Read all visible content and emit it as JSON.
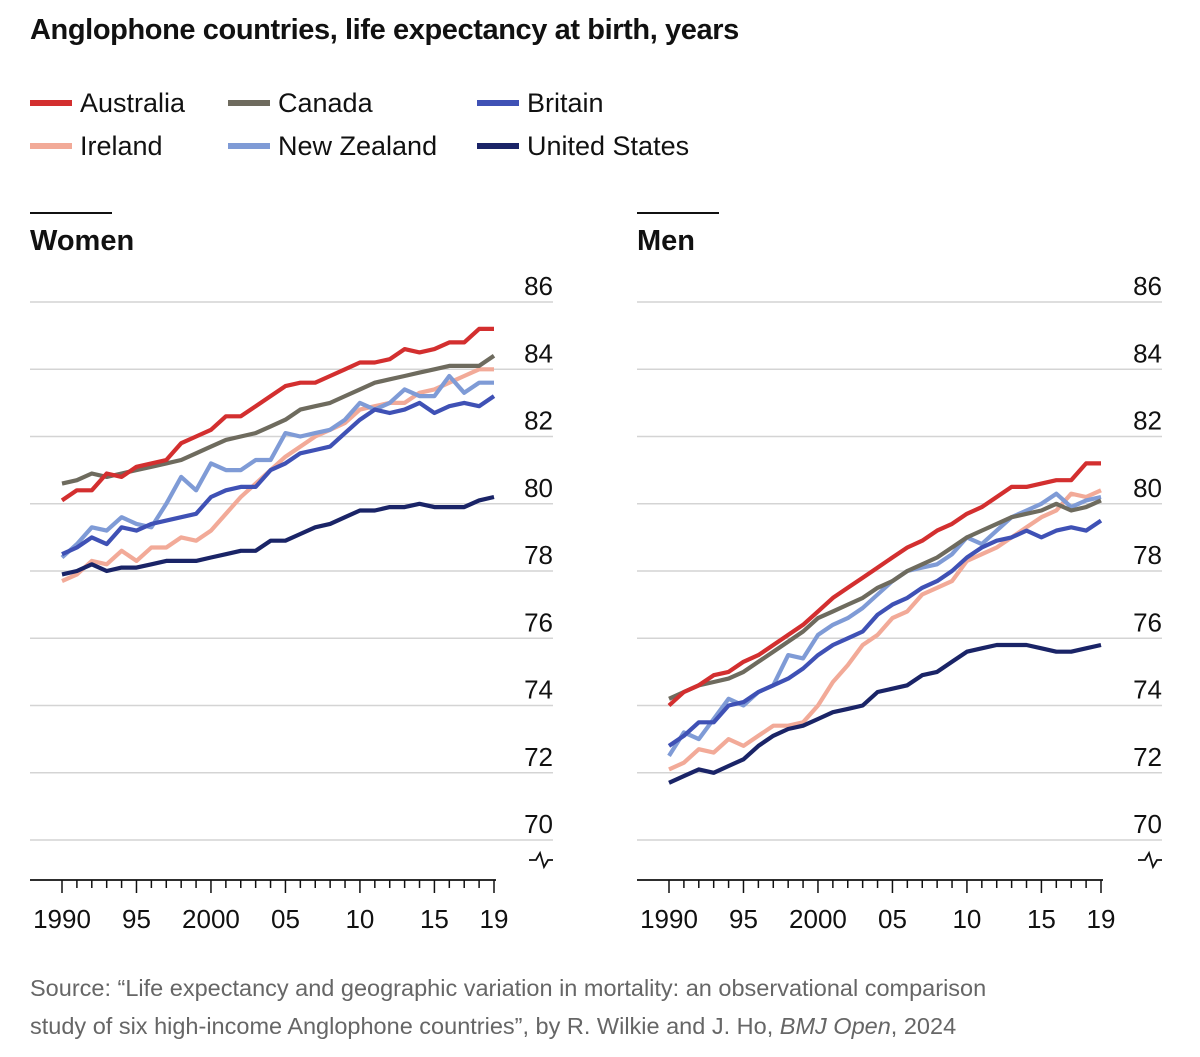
{
  "title": "Anglophone countries, life expectancy at birth, years",
  "legend": [
    {
      "label": "Australia",
      "color": "#d32f2f"
    },
    {
      "label": "Canada",
      "color": "#6e6b5e"
    },
    {
      "label": "Britain",
      "color": "#3f51b5"
    },
    {
      "label": "Ireland",
      "color": "#f2aa98"
    },
    {
      "label": "New Zealand",
      "color": "#7f9bd6"
    },
    {
      "label": "United States",
      "color": "#1a2467"
    }
  ],
  "source": {
    "line1": "Source: “Life expectancy and geographic variation in mortality: an observational comparison",
    "line2_prefix": "study of six high-income Anglophone countries”, by R. Wilkie and J. Ho, ",
    "journal": "BMJ Open",
    "line2_suffix": ", 2024"
  },
  "chart_data": [
    {
      "type": "line",
      "title": "Women",
      "xlabel": "",
      "ylabel": "",
      "x": [
        1990,
        1991,
        1992,
        1993,
        1994,
        1995,
        1996,
        1997,
        1998,
        1999,
        2000,
        2001,
        2002,
        2003,
        2004,
        2005,
        2006,
        2007,
        2008,
        2009,
        2010,
        2011,
        2012,
        2013,
        2014,
        2015,
        2016,
        2017,
        2018,
        2019
      ],
      "xticks": [
        1990,
        1995,
        2000,
        2005,
        2010,
        2015,
        2019
      ],
      "xtick_labels": [
        "1990",
        "95",
        "2000",
        "05",
        "10",
        "15",
        "19"
      ],
      "ylim": [
        70,
        86
      ],
      "yticks": [
        70,
        72,
        74,
        76,
        78,
        80,
        82,
        84,
        86
      ],
      "grid": true,
      "axis_break": true,
      "series": [
        {
          "name": "Ireland",
          "color": "#f2aa98",
          "values": [
            77.7,
            77.9,
            78.3,
            78.2,
            78.6,
            78.3,
            78.7,
            78.7,
            79.0,
            78.9,
            79.2,
            79.7,
            80.2,
            80.6,
            81.0,
            81.4,
            81.7,
            82.0,
            82.2,
            82.4,
            82.8,
            82.9,
            83.0,
            83.0,
            83.3,
            83.4,
            83.6,
            83.8,
            84.0,
            84.0
          ]
        },
        {
          "name": "New Zealand",
          "color": "#7f9bd6",
          "values": [
            78.4,
            78.8,
            79.3,
            79.2,
            79.6,
            79.4,
            79.3,
            80.0,
            80.8,
            80.4,
            81.2,
            81.0,
            81.0,
            81.3,
            81.3,
            82.1,
            82.0,
            82.1,
            82.2,
            82.5,
            83.0,
            82.8,
            83.0,
            83.4,
            83.2,
            83.2,
            83.8,
            83.3,
            83.6,
            83.6
          ]
        },
        {
          "name": "Britain",
          "color": "#3f51b5",
          "values": [
            78.5,
            78.7,
            79.0,
            78.8,
            79.3,
            79.2,
            79.4,
            79.5,
            79.6,
            79.7,
            80.2,
            80.4,
            80.5,
            80.5,
            81.0,
            81.2,
            81.5,
            81.6,
            81.7,
            82.1,
            82.5,
            82.8,
            82.7,
            82.8,
            83.0,
            82.7,
            82.9,
            83.0,
            82.9,
            83.2
          ]
        },
        {
          "name": "United States",
          "color": "#1a2467",
          "values": [
            77.9,
            78.0,
            78.2,
            78.0,
            78.1,
            78.1,
            78.2,
            78.3,
            78.3,
            78.3,
            78.4,
            78.5,
            78.6,
            78.6,
            78.9,
            78.9,
            79.1,
            79.3,
            79.4,
            79.6,
            79.8,
            79.8,
            79.9,
            79.9,
            80.0,
            79.9,
            79.9,
            79.9,
            80.1,
            80.2
          ]
        },
        {
          "name": "Canada",
          "color": "#6e6b5e",
          "values": [
            80.6,
            80.7,
            80.9,
            80.8,
            80.9,
            81.0,
            81.1,
            81.2,
            81.3,
            81.5,
            81.7,
            81.9,
            82.0,
            82.1,
            82.3,
            82.5,
            82.8,
            82.9,
            83.0,
            83.2,
            83.4,
            83.6,
            83.7,
            83.8,
            83.9,
            84.0,
            84.1,
            84.1,
            84.1,
            84.4
          ]
        },
        {
          "name": "Australia",
          "color": "#d32f2f",
          "values": [
            80.1,
            80.4,
            80.4,
            80.9,
            80.8,
            81.1,
            81.2,
            81.3,
            81.8,
            82.0,
            82.2,
            82.6,
            82.6,
            82.9,
            83.2,
            83.5,
            83.6,
            83.6,
            83.8,
            84.0,
            84.2,
            84.2,
            84.3,
            84.6,
            84.5,
            84.6,
            84.8,
            84.8,
            85.2,
            85.2
          ]
        }
      ]
    },
    {
      "type": "line",
      "title": "Men",
      "xlabel": "",
      "ylabel": "",
      "x": [
        1990,
        1991,
        1992,
        1993,
        1994,
        1995,
        1996,
        1997,
        1998,
        1999,
        2000,
        2001,
        2002,
        2003,
        2004,
        2005,
        2006,
        2007,
        2008,
        2009,
        2010,
        2011,
        2012,
        2013,
        2014,
        2015,
        2016,
        2017,
        2018,
        2019
      ],
      "xticks": [
        1990,
        1995,
        2000,
        2005,
        2010,
        2015,
        2019
      ],
      "xtick_labels": [
        "1990",
        "95",
        "2000",
        "05",
        "10",
        "15",
        "19"
      ],
      "ylim": [
        70,
        86
      ],
      "yticks": [
        70,
        72,
        74,
        76,
        78,
        80,
        82,
        84,
        86
      ],
      "grid": true,
      "axis_break": true,
      "series": [
        {
          "name": "Ireland",
          "color": "#f2aa98",
          "values": [
            72.1,
            72.3,
            72.7,
            72.6,
            73.0,
            72.8,
            73.1,
            73.4,
            73.4,
            73.5,
            74.0,
            74.7,
            75.2,
            75.8,
            76.1,
            76.6,
            76.8,
            77.3,
            77.5,
            77.7,
            78.3,
            78.5,
            78.7,
            79.0,
            79.3,
            79.6,
            79.8,
            80.3,
            80.2,
            80.4
          ]
        },
        {
          "name": "New Zealand",
          "color": "#7f9bd6",
          "values": [
            72.5,
            73.2,
            73.0,
            73.6,
            74.2,
            74.0,
            74.4,
            74.6,
            75.5,
            75.4,
            76.1,
            76.4,
            76.6,
            76.9,
            77.3,
            77.7,
            78.0,
            78.1,
            78.2,
            78.5,
            79.0,
            78.8,
            79.2,
            79.6,
            79.8,
            80.0,
            80.3,
            79.9,
            80.1,
            80.2
          ]
        },
        {
          "name": "Britain",
          "color": "#3f51b5",
          "values": [
            72.8,
            73.1,
            73.5,
            73.5,
            74.0,
            74.1,
            74.4,
            74.6,
            74.8,
            75.1,
            75.5,
            75.8,
            76.0,
            76.2,
            76.7,
            77.0,
            77.2,
            77.5,
            77.7,
            78.0,
            78.4,
            78.7,
            78.9,
            79.0,
            79.2,
            79.0,
            79.2,
            79.3,
            79.2,
            79.5
          ]
        },
        {
          "name": "United States",
          "color": "#1a2467",
          "values": [
            71.7,
            71.9,
            72.1,
            72.0,
            72.2,
            72.4,
            72.8,
            73.1,
            73.3,
            73.4,
            73.6,
            73.8,
            73.9,
            74.0,
            74.4,
            74.5,
            74.6,
            74.9,
            75.0,
            75.3,
            75.6,
            75.7,
            75.8,
            75.8,
            75.8,
            75.7,
            75.6,
            75.6,
            75.7,
            75.8
          ]
        },
        {
          "name": "Canada",
          "color": "#6e6b5e",
          "values": [
            74.2,
            74.4,
            74.6,
            74.7,
            74.8,
            75.0,
            75.3,
            75.6,
            75.9,
            76.2,
            76.6,
            76.8,
            77.0,
            77.2,
            77.5,
            77.7,
            78.0,
            78.2,
            78.4,
            78.7,
            79.0,
            79.2,
            79.4,
            79.6,
            79.7,
            79.8,
            80.0,
            79.8,
            79.9,
            80.1
          ]
        },
        {
          "name": "Australia",
          "color": "#d32f2f",
          "values": [
            74.0,
            74.4,
            74.6,
            74.9,
            75.0,
            75.3,
            75.5,
            75.8,
            76.1,
            76.4,
            76.8,
            77.2,
            77.5,
            77.8,
            78.1,
            78.4,
            78.7,
            78.9,
            79.2,
            79.4,
            79.7,
            79.9,
            80.2,
            80.5,
            80.5,
            80.6,
            80.7,
            80.7,
            81.2,
            81.2
          ]
        }
      ]
    }
  ]
}
